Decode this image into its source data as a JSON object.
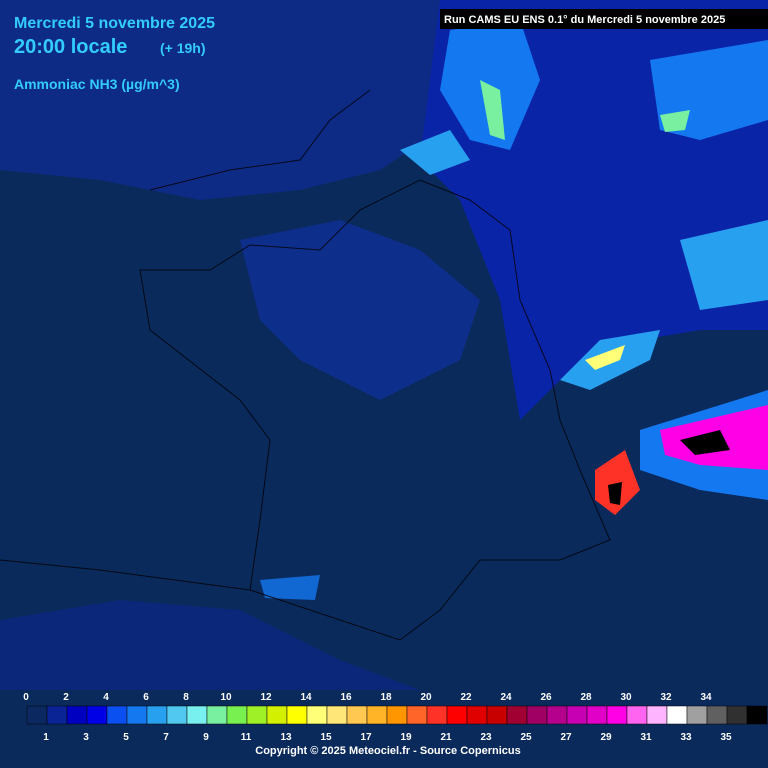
{
  "header": {
    "date": "Mercredi 5 novembre 2025",
    "time": "20:00 locale",
    "lead": "(+ 19h)",
    "parameter": "Ammoniac NH3 (µg/m^3)",
    "run": "Run CAMS EU ENS 0.1° du Mercredi 5 novembre 2025"
  },
  "legend": {
    "labels": [
      0,
      1,
      2,
      3,
      4,
      5,
      6,
      7,
      8,
      9,
      10,
      11,
      12,
      13,
      14,
      15,
      16,
      17,
      18,
      19,
      20,
      21,
      22,
      23,
      24,
      25,
      26,
      27,
      28,
      29,
      30,
      31,
      32,
      33,
      34,
      35
    ],
    "colors": [
      "#0c2860",
      "#0a2496",
      "#0000c0",
      "#0000e6",
      "#0a50f0",
      "#1478f0",
      "#28a0f0",
      "#50c8f0",
      "#78f0f0",
      "#78f0a0",
      "#78f050",
      "#a0f028",
      "#d2f000",
      "#ffff00",
      "#ffff78",
      "#ffe678",
      "#ffc850",
      "#ffb428",
      "#ff9600",
      "#ff6428",
      "#ff3228",
      "#ff0000",
      "#e10000",
      "#c80000",
      "#a00032",
      "#a00064",
      "#b4008c",
      "#c800b4",
      "#e100c8",
      "#ff00e6",
      "#ff64f0",
      "#ffb4ff",
      "#ffffff",
      "#a0a0a0",
      "#606060",
      "#303030",
      "#000000"
    ]
  },
  "footer": {
    "copyright": "Copyright © 2025 Meteociel.fr - Source Copernicus"
  }
}
